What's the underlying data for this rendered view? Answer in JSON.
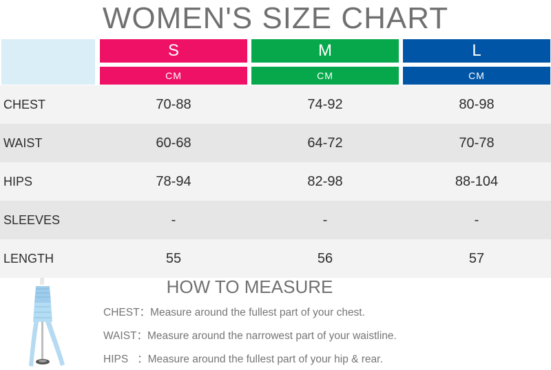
{
  "title": "WOMEN'S SIZE CHART",
  "colors": {
    "s": "#ef1166",
    "m": "#07a84b",
    "l": "#0055a6",
    "corner": "#d9eef6"
  },
  "sizes": [
    {
      "label": "S",
      "unit": "CM"
    },
    {
      "label": "M",
      "unit": "CM"
    },
    {
      "label": "L",
      "unit": "CM"
    }
  ],
  "rows": [
    {
      "label": "CHEST",
      "values": [
        "70-88",
        "74-92",
        "80-98"
      ]
    },
    {
      "label": "WAIST",
      "values": [
        "60-68",
        "64-72",
        "70-78"
      ]
    },
    {
      "label": "HIPS",
      "values": [
        "78-94",
        "82-98",
        "88-104"
      ]
    },
    {
      "label": "SLEEVES",
      "values": [
        "-",
        "-",
        "-"
      ]
    },
    {
      "label": "LENGTH",
      "values": [
        "55",
        "56",
        "57"
      ]
    }
  ],
  "measure": {
    "title": "HOW TO MEASURE",
    "lines": [
      "CHEST：Measure around the fullest part of your chest.",
      "WAIST：Measure around the narrowest part of your waistline.",
      "HIPS   ：Measure around the fullest part of your hip & rear."
    ]
  },
  "image": {
    "icon": "blue-strapless-dress-on-mannequin-icon"
  }
}
